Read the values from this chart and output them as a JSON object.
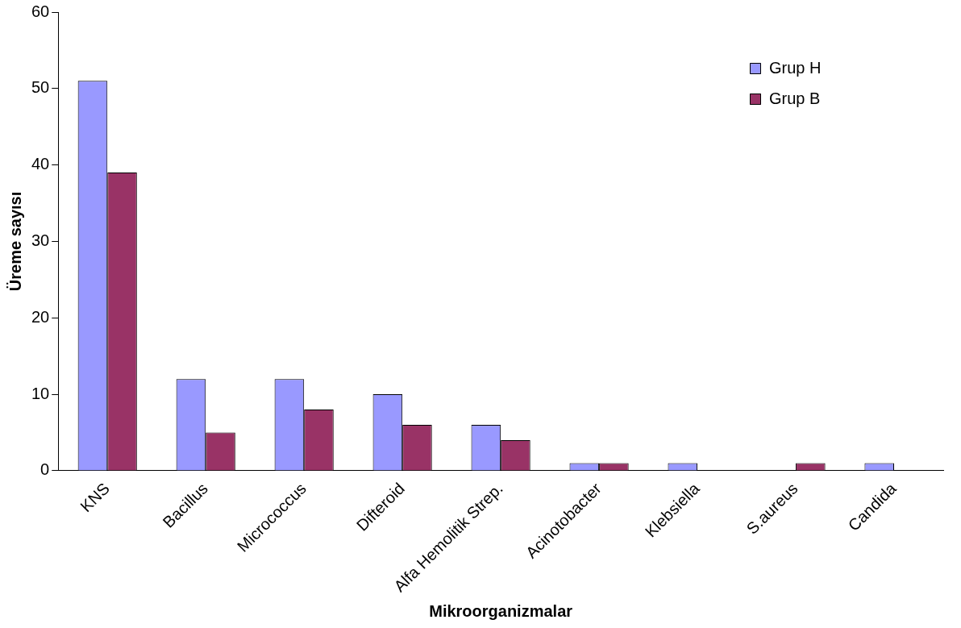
{
  "chart_data": {
    "type": "bar",
    "xlabel": "Mikroorganizmalar",
    "ylabel": "Üreme sayısı",
    "categories": [
      "KNS",
      "Bacillus",
      "Micrococcus",
      "Difteroid",
      "Alfa Hemolitik Strep.",
      "Acinotobacter",
      "Klebsiella",
      "S.aureus",
      "Candida"
    ],
    "series": [
      {
        "name": "Grup H",
        "color": "#9999ff",
        "values": [
          51,
          12,
          12,
          10,
          6,
          1,
          1,
          0,
          1
        ]
      },
      {
        "name": "Grup B",
        "color": "#993366",
        "values": [
          39,
          5,
          8,
          6,
          4,
          1,
          0,
          1,
          0
        ]
      }
    ],
    "ylim": [
      0,
      60
    ],
    "yticks": [
      0,
      10,
      20,
      30,
      40,
      50,
      60
    ],
    "grid": false,
    "legend": "top right"
  }
}
